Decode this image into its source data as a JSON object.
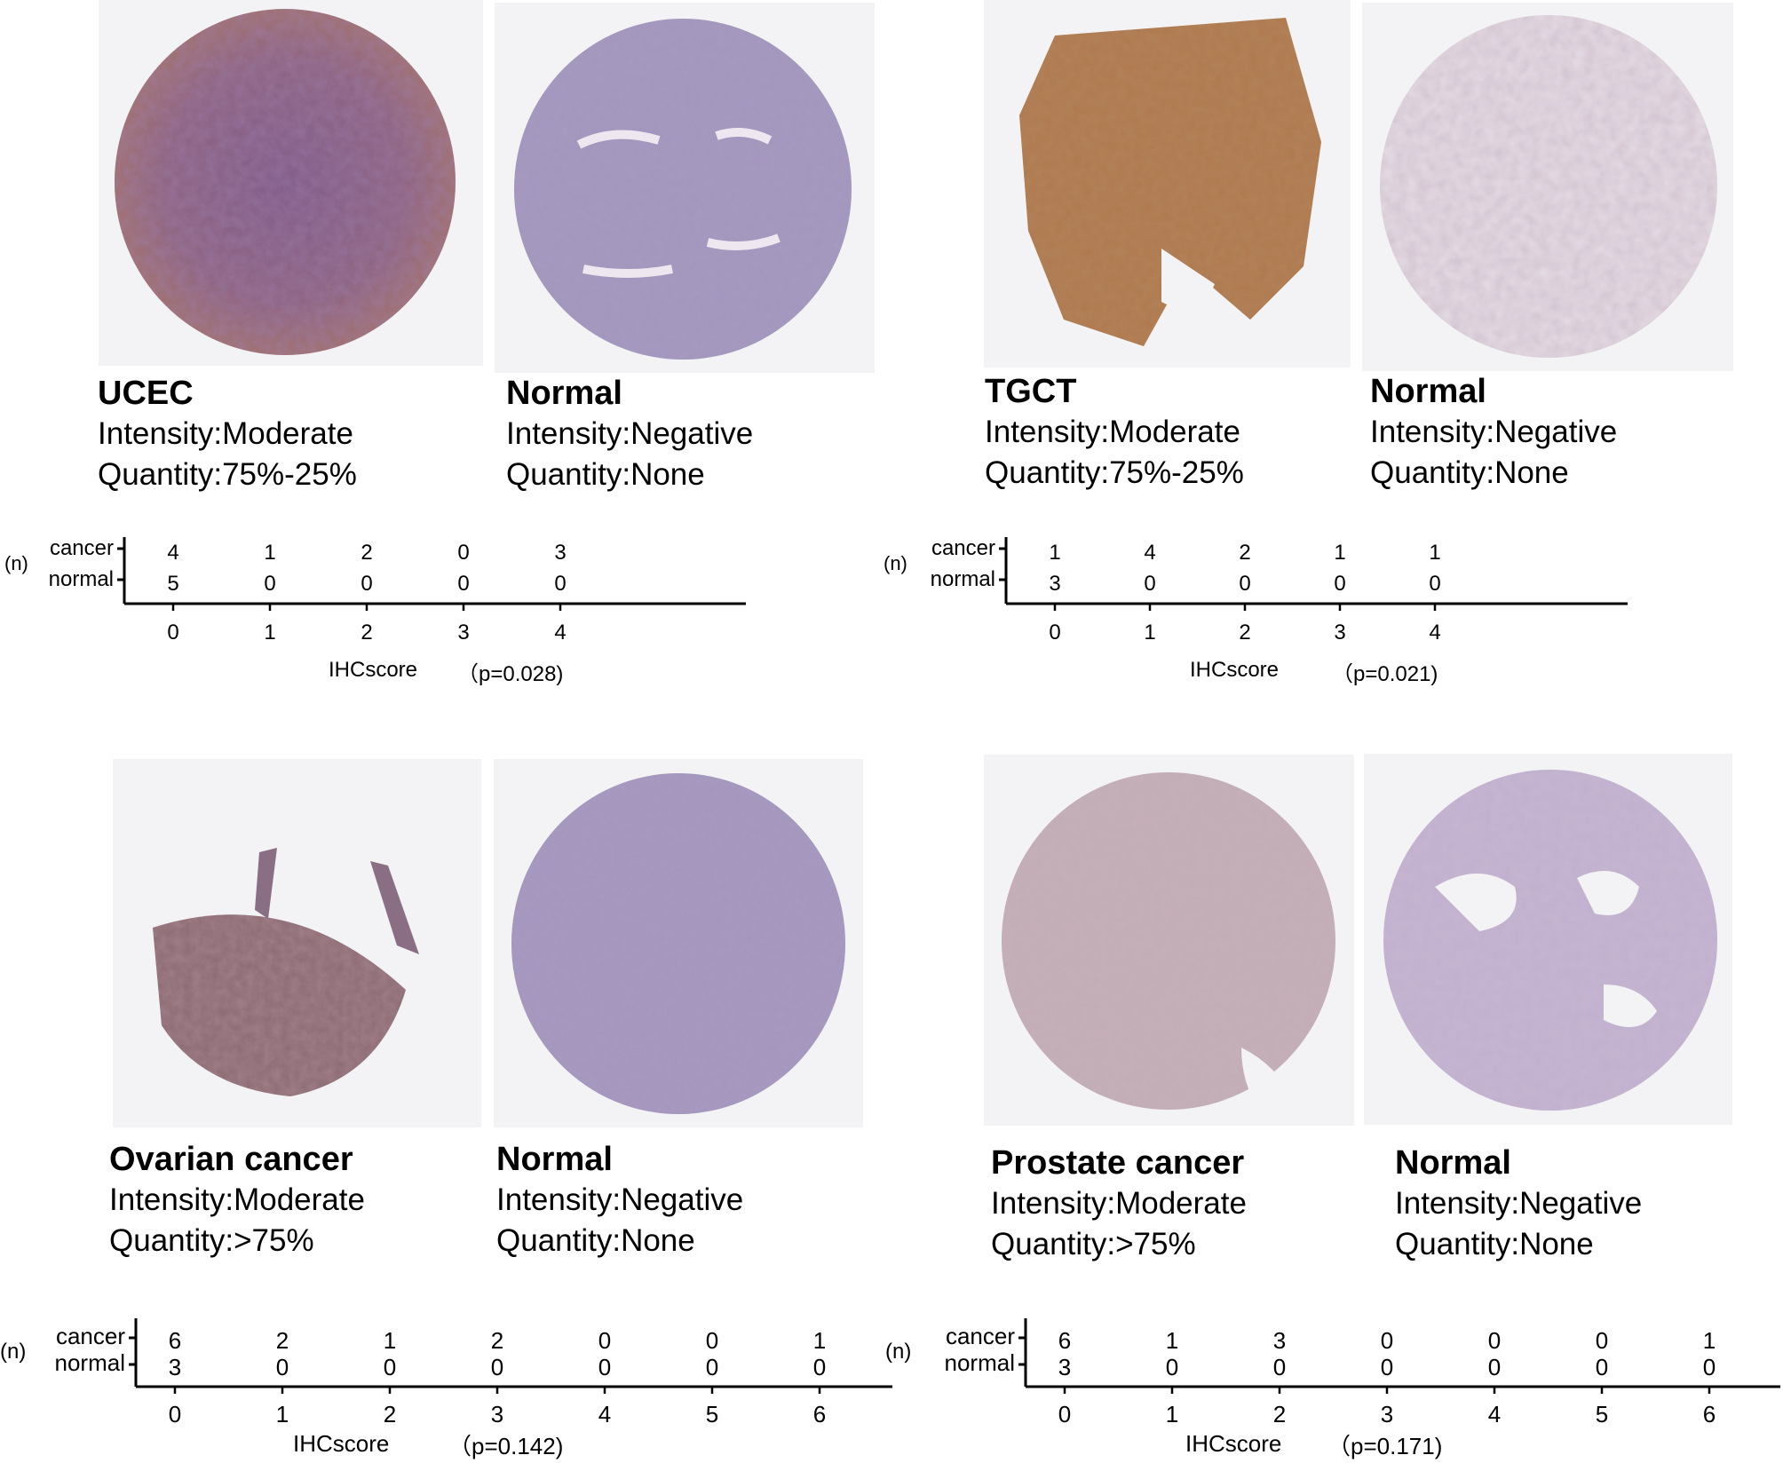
{
  "panels": [
    {
      "id": "ucec",
      "tumor_image_alt": "",
      "normal_image_alt": "",
      "tumor_label": {
        "title": "UCEC",
        "intensity": "Intensity:Moderate",
        "quantity": "Quantity:75%-25%"
      },
      "normal_label": {
        "title": "Normal",
        "intensity": "Intensity:Negative",
        "quantity": "Quantity:None"
      },
      "chart_data": {
        "type": "table",
        "row_labels": [
          "cancer",
          "normal"
        ],
        "unit_label": "(n)",
        "x": [
          0,
          1,
          2,
          3,
          4
        ],
        "series": [
          {
            "name": "cancer",
            "values": [
              4,
              1,
              2,
              0,
              3
            ]
          },
          {
            "name": "normal",
            "values": [
              5,
              0,
              0,
              0,
              0
            ]
          }
        ],
        "xlabel": "IHCscore",
        "p_value": "（p=0.028)"
      }
    },
    {
      "id": "tgct",
      "tumor_image_alt": "",
      "normal_image_alt": "",
      "tumor_label": {
        "title": "TGCT",
        "intensity": "Intensity:Moderate",
        "quantity": "Quantity:75%-25%"
      },
      "normal_label": {
        "title": "Normal",
        "intensity": "Intensity:Negative",
        "quantity": "Quantity:None"
      },
      "chart_data": {
        "type": "table",
        "row_labels": [
          "cancer",
          "normal"
        ],
        "unit_label": "(n)",
        "x": [
          0,
          1,
          2,
          3,
          4
        ],
        "series": [
          {
            "name": "cancer",
            "values": [
              1,
              4,
              2,
              1,
              1
            ]
          },
          {
            "name": "normal",
            "values": [
              3,
              0,
              0,
              0,
              0
            ]
          }
        ],
        "xlabel": "IHCscore",
        "p_value": "（p=0.021)"
      }
    },
    {
      "id": "ovarian",
      "tumor_image_alt": "",
      "normal_image_alt": "",
      "tumor_label": {
        "title": "Ovarian cancer",
        "intensity": "Intensity:Moderate",
        "quantity": "Quantity:>75%"
      },
      "normal_label": {
        "title": "Normal",
        "intensity": "Intensity:Negative",
        "quantity": "Quantity:None"
      },
      "chart_data": {
        "type": "table",
        "row_labels": [
          "cancer",
          "normal"
        ],
        "unit_label": "(n)",
        "x": [
          0,
          1,
          2,
          3,
          4,
          5,
          6
        ],
        "series": [
          {
            "name": "cancer",
            "values": [
              6,
              2,
              1,
              2,
              0,
              0,
              1
            ]
          },
          {
            "name": "normal",
            "values": [
              3,
              0,
              0,
              0,
              0,
              0,
              0
            ]
          }
        ],
        "xlabel": "IHCscore",
        "p_value": "（p=0.142)"
      }
    },
    {
      "id": "prostate",
      "tumor_image_alt": "",
      "normal_image_alt": "",
      "tumor_label": {
        "title": "Prostate cancer",
        "intensity": "Intensity:Moderate",
        "quantity": "Quantity:>75%"
      },
      "normal_label": {
        "title": "Normal",
        "intensity": "Intensity:Negative",
        "quantity": "Quantity:None"
      },
      "chart_data": {
        "type": "table",
        "row_labels": [
          "cancer",
          "normal"
        ],
        "unit_label": "(n)",
        "x": [
          0,
          1,
          2,
          3,
          4,
          5,
          6
        ],
        "series": [
          {
            "name": "cancer",
            "values": [
              6,
              1,
              3,
              0,
              0,
              0,
              1
            ]
          },
          {
            "name": "normal",
            "values": [
              3,
              0,
              0,
              0,
              0,
              0,
              0
            ]
          }
        ],
        "xlabel": "IHCscore",
        "p_value": "（p=0.171)"
      }
    }
  ],
  "colors": {
    "dab_brown": "#a8744e",
    "hematoxylin_purple": "#8a6fa3",
    "frame_bg": "#f3f2f4",
    "axis": "#000000"
  }
}
